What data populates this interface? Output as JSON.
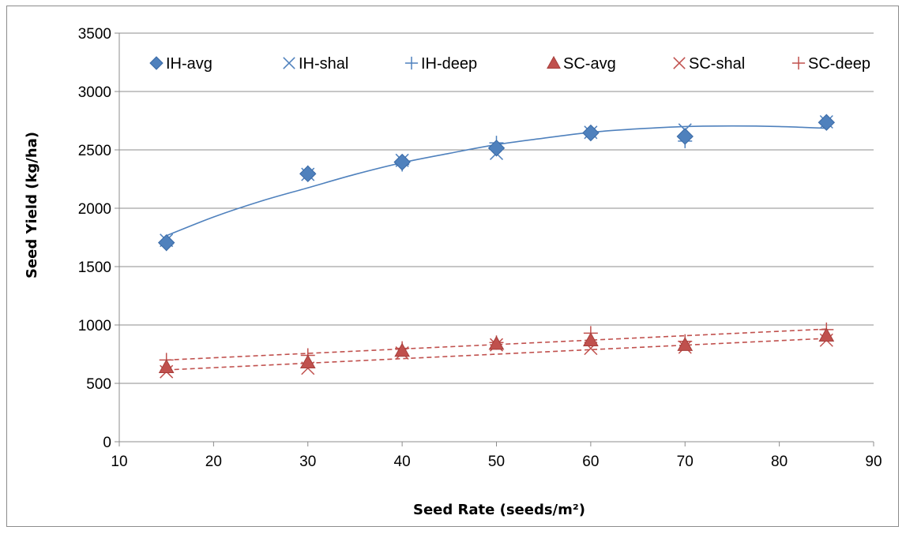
{
  "chart_data": {
    "type": "scatter",
    "xlabel": "Seed Rate (seeds/m²)",
    "ylabel": "Seed Yield (kg/ha)",
    "xlim": [
      10,
      90
    ],
    "ylim": [
      0,
      3500
    ],
    "x_ticks": [
      10,
      20,
      30,
      40,
      50,
      60,
      70,
      80,
      90
    ],
    "y_ticks": [
      0,
      500,
      1000,
      1500,
      2000,
      2500,
      3000,
      3500
    ],
    "grid": "horizontal",
    "legend_position": "top",
    "series": [
      {
        "name": "IH-avg",
        "marker": "diamond",
        "color": "#4f81bd",
        "x": [
          15,
          30,
          40,
          50,
          60,
          70,
          85
        ],
        "y": [
          1705,
          2295,
          2395,
          2515,
          2645,
          2615,
          2735
        ]
      },
      {
        "name": "IH-shal",
        "marker": "x",
        "color": "#4f81bd",
        "x": [
          15,
          30,
          40,
          50,
          60,
          70,
          85
        ],
        "y": [
          1725,
          2290,
          2410,
          2470,
          2650,
          2670,
          2740
        ]
      },
      {
        "name": "IH-deep",
        "marker": "plus",
        "color": "#4f81bd",
        "x": [
          15,
          30,
          40,
          50,
          60,
          70,
          85
        ],
        "y": [
          1695,
          2305,
          2375,
          2560,
          2640,
          2575,
          2730
        ]
      },
      {
        "name": "SC-avg",
        "marker": "triangle",
        "color": "#c0504d",
        "x": [
          15,
          30,
          40,
          50,
          60,
          70,
          85
        ],
        "y": [
          640,
          680,
          780,
          840,
          870,
          830,
          910
        ]
      },
      {
        "name": "SC-shal",
        "marker": "x",
        "color": "#c0504d",
        "x": [
          15,
          30,
          40,
          50,
          60,
          70,
          85
        ],
        "y": [
          600,
          630,
          760,
          830,
          800,
          810,
          870
        ]
      },
      {
        "name": "SC-deep",
        "marker": "plus",
        "color": "#c0504d",
        "x": [
          15,
          30,
          40,
          50,
          60,
          70,
          85
        ],
        "y": [
          700,
          740,
          800,
          850,
          930,
          860,
          960
        ]
      }
    ],
    "trendlines": [
      {
        "series": "IH-avg",
        "kind": "polynomial",
        "style": "solid",
        "x": [
          15,
          20,
          25,
          30,
          35,
          40,
          45,
          50,
          55,
          60,
          65,
          70,
          75,
          80,
          85
        ],
        "y": [
          1765,
          1925,
          2060,
          2175,
          2290,
          2390,
          2470,
          2545,
          2600,
          2650,
          2680,
          2700,
          2705,
          2700,
          2685
        ]
      },
      {
        "series": "SC-shal",
        "kind": "linear",
        "style": "dashed",
        "x": [
          15,
          85
        ],
        "y": [
          615,
          885
        ]
      },
      {
        "series": "SC-deep",
        "kind": "linear",
        "style": "dashed",
        "x": [
          15,
          85
        ],
        "y": [
          700,
          965
        ]
      }
    ]
  }
}
